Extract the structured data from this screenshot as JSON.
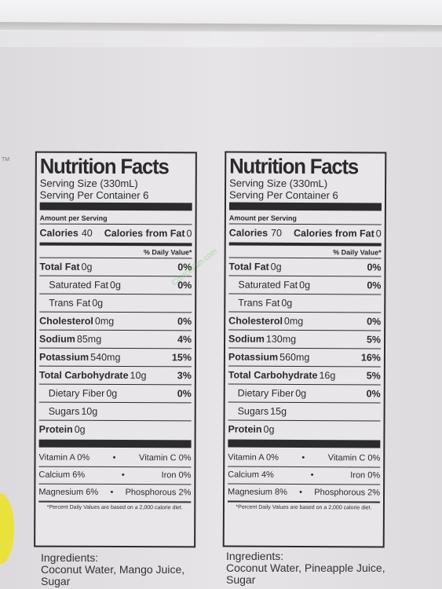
{
  "labels": [
    {
      "title": "Nutrition Facts",
      "serving_size": "Serving Size (330mL)",
      "servings": "Serving Per Container 6",
      "amount_per_serving": "Amount per Serving",
      "calories_label": "Calories",
      "calories": "40",
      "calories_fat_label": "Calories from Fat",
      "calories_fat": "0",
      "dv_header": "% Daily Value*",
      "rows": [
        {
          "name": "Total Fat",
          "amount": "0g",
          "pct": "0%"
        },
        {
          "name": "Saturated Fat",
          "amount": "0g",
          "pct": "0%"
        },
        {
          "name": "Trans Fat",
          "amount": "0g",
          "pct": ""
        },
        {
          "name": "Cholesterol",
          "amount": "0mg",
          "pct": "0%"
        },
        {
          "name": "Sodium",
          "amount": "85mg",
          "pct": "4%"
        },
        {
          "name": "Potassium",
          "amount": "540mg",
          "pct": "15%"
        },
        {
          "name": "Total Carbohydrate",
          "amount": "10g",
          "pct": "3%"
        },
        {
          "name": "Dietary Fiber",
          "amount": "0g",
          "pct": "0%"
        },
        {
          "name": "Sugars",
          "amount": "10g",
          "pct": ""
        },
        {
          "name": "Protein",
          "amount": "0g",
          "pct": ""
        }
      ],
      "vitamins": [
        [
          "Vitamin A 0%",
          "Vitamin C 0%"
        ],
        [
          "Calcium 6%",
          "Iron 0%"
        ],
        [
          "Magnesium 6%",
          "Phosphorous 2%"
        ]
      ],
      "footnote": "*Percent Daily Values are based on a 2,000 calorie diet.",
      "ingredients_title": "Ingredients:",
      "ingredients": "Coconut Water, Mango Juice,",
      "ingredients2": "Sugar"
    },
    {
      "title": "Nutrition Facts",
      "serving_size": "Serving Size (330mL)",
      "servings": "Serving Per Container 6",
      "amount_per_serving": "Amount per Serving",
      "calories_label": "Calories",
      "calories": "70",
      "calories_fat_label": "Calories from Fat",
      "calories_fat": "0",
      "dv_header": "% Daily Value*",
      "rows": [
        {
          "name": "Total Fat",
          "amount": "0g",
          "pct": "0%"
        },
        {
          "name": "Saturated Fat",
          "amount": "0g",
          "pct": "0%"
        },
        {
          "name": "Trans Fat",
          "amount": "0g",
          "pct": ""
        },
        {
          "name": "Cholesterol",
          "amount": "0mg",
          "pct": "0%"
        },
        {
          "name": "Sodium",
          "amount": "130mg",
          "pct": "5%"
        },
        {
          "name": "Potassium",
          "amount": "560mg",
          "pct": "16%"
        },
        {
          "name": "Total Carbohydrate",
          "amount": "16g",
          "pct": "5%"
        },
        {
          "name": "Dietary Fiber",
          "amount": "0g",
          "pct": "0%"
        },
        {
          "name": "Sugars",
          "amount": "15g",
          "pct": ""
        },
        {
          "name": "Protein",
          "amount": "0g",
          "pct": ""
        }
      ],
      "vitamins": [
        [
          "Vitamin A 0%",
          "Vitamin C 0%"
        ],
        [
          "Calcium 4%",
          "Iron 0%"
        ],
        [
          "Magnesium 8%",
          "Phosphorous 2%"
        ]
      ],
      "footnote": "*Percent Daily Values are based on a 2,000 calorie diet.",
      "ingredients_title": "Ingredients:",
      "ingredients": "Coconut Water, Pineapple Juice,",
      "ingredients2": "Sugar"
    }
  ],
  "watermark": "CostcoFan.com",
  "carton_mark": "TM"
}
